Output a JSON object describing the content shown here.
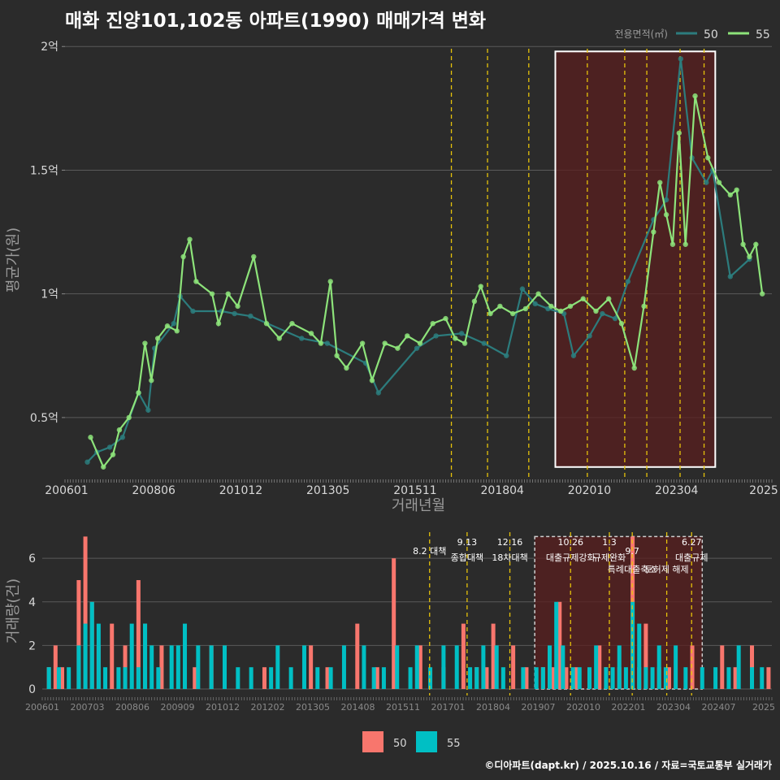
{
  "title": "매화 진양101,102동 아파트(1990) 매매가격 변화",
  "footer": "©디아파트(dapt.kr) / 2025.10.16 / 자료=국토교통부 실거래가",
  "colors": {
    "background": "#2b2b2b",
    "series50": "#2c7c7d",
    "series55": "#8de37a",
    "bar50": "#f8766d",
    "bar55": "#00bfc4",
    "highlight": "#5a1f1f",
    "policy": "#e6c20a",
    "grid": "#5a5a5a",
    "text": "#d8d8d8"
  },
  "chart_data": [
    {
      "type": "line",
      "title": "매화 진양101,102동 아파트(1990) 매매가격 변화",
      "xlabel": "거래년월",
      "ylabel": "평균가(원)",
      "ylim": [
        0.25,
        2.05
      ],
      "y_ticks": [
        {
          "v": 0.5,
          "label": "0.5억"
        },
        {
          "v": 1.0,
          "label": "1억"
        },
        {
          "v": 1.5,
          "label": "1.5억"
        },
        {
          "v": 2.0,
          "label": "2억"
        }
      ],
      "x_ticks": [
        "200601",
        "200806",
        "201012",
        "201305",
        "201511",
        "201804",
        "202010",
        "202304",
        "2025"
      ],
      "legend": {
        "title": "전용면적(㎡)",
        "items": [
          "50",
          "55"
        ],
        "position": "top-right"
      },
      "policy_lines": [
        2017.58,
        2018.71,
        2020.0,
        2021.83,
        2023.0,
        2023.69,
        2024.73,
        2025.48
      ],
      "highlight_period": {
        "x_from": 2020.83,
        "x_to": 2025.83,
        "y_from": 0.3,
        "y_to": 1.98
      },
      "series": [
        {
          "name": "50",
          "points": [
            [
              2006.2,
              0.32
            ],
            [
              2006.5,
              0.36
            ],
            [
              2006.9,
              0.38
            ],
            [
              2007.3,
              0.42
            ],
            [
              2007.8,
              0.6
            ],
            [
              2008.1,
              0.53
            ],
            [
              2008.3,
              0.78
            ],
            [
              2008.9,
              0.88
            ],
            [
              2009.1,
              0.99
            ],
            [
              2009.5,
              0.93
            ],
            [
              2010.4,
              0.93
            ],
            [
              2010.8,
              0.92
            ],
            [
              2011.3,
              0.91
            ],
            [
              2012.9,
              0.82
            ],
            [
              2013.7,
              0.8
            ],
            [
              2014.9,
              0.72
            ],
            [
              2015.3,
              0.6
            ],
            [
              2016.5,
              0.78
            ],
            [
              2017.1,
              0.83
            ],
            [
              2017.9,
              0.84
            ],
            [
              2018.6,
              0.8
            ],
            [
              2019.3,
              0.75
            ],
            [
              2019.8,
              1.02
            ],
            [
              2020.2,
              0.96
            ],
            [
              2020.6,
              0.94
            ],
            [
              2021.1,
              0.92
            ],
            [
              2021.4,
              0.75
            ],
            [
              2021.9,
              0.83
            ],
            [
              2022.3,
              0.92
            ],
            [
              2022.7,
              0.9
            ],
            [
              2023.1,
              1.05
            ],
            [
              2023.9,
              1.3
            ],
            [
              2024.3,
              1.38
            ],
            [
              2024.75,
              1.95
            ],
            [
              2025.1,
              1.55
            ],
            [
              2025.55,
              1.45
            ],
            [
              2025.75,
              1.5
            ],
            [
              2026.3,
              1.07
            ],
            [
              2026.9,
              1.14
            ]
          ]
        },
        {
          "name": "55",
          "points": [
            [
              2006.3,
              0.42
            ],
            [
              2006.7,
              0.3
            ],
            [
              2007.0,
              0.35
            ],
            [
              2007.2,
              0.45
            ],
            [
              2007.5,
              0.5
            ],
            [
              2007.8,
              0.6
            ],
            [
              2008.0,
              0.8
            ],
            [
              2008.2,
              0.65
            ],
            [
              2008.4,
              0.82
            ],
            [
              2008.7,
              0.87
            ],
            [
              2009.0,
              0.85
            ],
            [
              2009.2,
              1.15
            ],
            [
              2009.4,
              1.22
            ],
            [
              2009.6,
              1.05
            ],
            [
              2010.1,
              1.0
            ],
            [
              2010.3,
              0.88
            ],
            [
              2010.6,
              1.0
            ],
            [
              2010.9,
              0.95
            ],
            [
              2011.4,
              1.15
            ],
            [
              2011.8,
              0.88
            ],
            [
              2012.2,
              0.82
            ],
            [
              2012.6,
              0.88
            ],
            [
              2013.2,
              0.84
            ],
            [
              2013.5,
              0.8
            ],
            [
              2013.8,
              1.05
            ],
            [
              2014.0,
              0.75
            ],
            [
              2014.3,
              0.7
            ],
            [
              2014.8,
              0.8
            ],
            [
              2015.1,
              0.65
            ],
            [
              2015.5,
              0.8
            ],
            [
              2015.9,
              0.78
            ],
            [
              2016.2,
              0.83
            ],
            [
              2016.6,
              0.8
            ],
            [
              2017.0,
              0.88
            ],
            [
              2017.4,
              0.9
            ],
            [
              2017.7,
              0.82
            ],
            [
              2018.0,
              0.8
            ],
            [
              2018.3,
              0.97
            ],
            [
              2018.5,
              1.03
            ],
            [
              2018.8,
              0.92
            ],
            [
              2019.1,
              0.95
            ],
            [
              2019.5,
              0.92
            ],
            [
              2019.9,
              0.94
            ],
            [
              2020.3,
              1.0
            ],
            [
              2020.7,
              0.95
            ],
            [
              2021.0,
              0.93
            ],
            [
              2021.3,
              0.95
            ],
            [
              2021.7,
              0.98
            ],
            [
              2022.1,
              0.93
            ],
            [
              2022.5,
              0.98
            ],
            [
              2022.9,
              0.88
            ],
            [
              2023.3,
              0.7
            ],
            [
              2023.6,
              0.95
            ],
            [
              2023.9,
              1.25
            ],
            [
              2024.1,
              1.45
            ],
            [
              2024.3,
              1.32
            ],
            [
              2024.5,
              1.2
            ],
            [
              2024.7,
              1.65
            ],
            [
              2024.9,
              1.2
            ],
            [
              2025.2,
              1.8
            ],
            [
              2025.6,
              1.55
            ],
            [
              2025.95,
              1.45
            ],
            [
              2026.3,
              1.4
            ],
            [
              2026.5,
              1.42
            ],
            [
              2026.7,
              1.2
            ],
            [
              2026.9,
              1.15
            ],
            [
              2027.1,
              1.2
            ],
            [
              2027.3,
              1.0
            ]
          ]
        }
      ]
    },
    {
      "type": "bar",
      "xlabel": "",
      "ylabel": "거래량(건)",
      "ylim": [
        0,
        7.2
      ],
      "y_ticks": [
        0,
        2,
        4,
        6
      ],
      "x_ticks": [
        "200601",
        "200703",
        "200806",
        "200909",
        "201012",
        "201202",
        "201305",
        "201408",
        "201511",
        "201701",
        "201804",
        "201907",
        "202010",
        "202201",
        "202304",
        "202407",
        "2025"
      ],
      "legend": {
        "items": [
          "50",
          "55"
        ],
        "position": "bottom"
      },
      "highlight_period": {
        "x_from": 2020.75,
        "x_to": 2025.8,
        "y_from": 0,
        "y_to": 7.0
      },
      "annotations": [
        {
          "x": 2017.58,
          "top": "",
          "bottom": "8.2 대책",
          "level": 6.2
        },
        {
          "x": 2018.71,
          "top": "9.13",
          "bottom": "종합대책",
          "level": 6.5
        },
        {
          "x": 2020.0,
          "top": "12.16",
          "bottom": "18차대책",
          "level": 6.5
        },
        {
          "x": 2021.83,
          "top": "10.26",
          "bottom": "대출규제강화",
          "level": 6.5
        },
        {
          "x": 2023.0,
          "top": "1.3",
          "bottom": "규제완화",
          "level": 6.5
        },
        {
          "x": 2023.69,
          "top": "",
          "bottom": "9.7",
          "level": 6.2
        },
        {
          "x": 2023.69,
          "top": "",
          "bottom": "특례대출축소",
          "level": 5.8
        },
        {
          "x": 2024.73,
          "top": "",
          "bottom": "토허제 해제",
          "level": 5.8
        },
        {
          "x": 2025.48,
          "top": "6.27",
          "bottom": "대출규제",
          "level": 6.5
        }
      ],
      "series": [
        {
          "name": "50",
          "values": [
            [
              2006.1,
              1
            ],
            [
              2006.3,
              2
            ],
            [
              2006.5,
              1
            ],
            [
              2007.0,
              5
            ],
            [
              2007.2,
              7
            ],
            [
              2007.4,
              4
            ],
            [
              2007.6,
              2
            ],
            [
              2008.0,
              3
            ],
            [
              2008.4,
              2
            ],
            [
              2008.8,
              5
            ],
            [
              2009.0,
              3
            ],
            [
              2009.5,
              2
            ],
            [
              2010.2,
              1
            ],
            [
              2010.5,
              1
            ],
            [
              2011.0,
              2
            ],
            [
              2012.6,
              1
            ],
            [
              2014.0,
              2
            ],
            [
              2014.5,
              1
            ],
            [
              2015.4,
              3
            ],
            [
              2016.0,
              1
            ],
            [
              2016.5,
              6
            ],
            [
              2017.3,
              2
            ],
            [
              2018.0,
              1
            ],
            [
              2018.6,
              3
            ],
            [
              2019.0,
              1
            ],
            [
              2019.3,
              1
            ],
            [
              2019.5,
              3
            ],
            [
              2020.1,
              2
            ],
            [
              2020.5,
              1
            ],
            [
              2021.0,
              1
            ],
            [
              2021.3,
              1
            ],
            [
              2021.5,
              4
            ],
            [
              2021.7,
              1
            ],
            [
              2022.0,
              1
            ],
            [
              2022.7,
              2
            ],
            [
              2022.9,
              1
            ],
            [
              2023.3,
              1
            ],
            [
              2023.7,
              7
            ],
            [
              2023.9,
              1
            ],
            [
              2024.1,
              3
            ],
            [
              2024.5,
              1
            ],
            [
              2024.8,
              1
            ],
            [
              2025.5,
              2
            ],
            [
              2026.4,
              2
            ],
            [
              2026.8,
              1
            ],
            [
              2027.3,
              2
            ],
            [
              2027.8,
              1
            ]
          ]
        },
        {
          "name": "55",
          "values": [
            [
              2006.1,
              1
            ],
            [
              2006.4,
              1
            ],
            [
              2006.7,
              1
            ],
            [
              2007.0,
              2
            ],
            [
              2007.2,
              3
            ],
            [
              2007.4,
              4
            ],
            [
              2007.6,
              3
            ],
            [
              2007.8,
              1
            ],
            [
              2008.2,
              1
            ],
            [
              2008.4,
              1
            ],
            [
              2008.6,
              3
            ],
            [
              2008.8,
              1
            ],
            [
              2009.0,
              3
            ],
            [
              2009.2,
              2
            ],
            [
              2009.4,
              1
            ],
            [
              2009.8,
              2
            ],
            [
              2010.0,
              2
            ],
            [
              2010.2,
              3
            ],
            [
              2010.6,
              2
            ],
            [
              2011.0,
              2
            ],
            [
              2011.4,
              2
            ],
            [
              2011.8,
              1
            ],
            [
              2012.2,
              1
            ],
            [
              2012.8,
              1
            ],
            [
              2013.0,
              2
            ],
            [
              2013.4,
              1
            ],
            [
              2013.8,
              2
            ],
            [
              2014.2,
              1
            ],
            [
              2014.6,
              1
            ],
            [
              2015.0,
              2
            ],
            [
              2015.6,
              2
            ],
            [
              2015.9,
              1
            ],
            [
              2016.2,
              1
            ],
            [
              2016.6,
              2
            ],
            [
              2017.0,
              1
            ],
            [
              2017.2,
              2
            ],
            [
              2017.6,
              1
            ],
            [
              2018.0,
              2
            ],
            [
              2018.4,
              2
            ],
            [
              2018.8,
              1
            ],
            [
              2019.0,
              1
            ],
            [
              2019.2,
              2
            ],
            [
              2019.6,
              2
            ],
            [
              2019.8,
              1
            ],
            [
              2020.4,
              1
            ],
            [
              2020.8,
              1
            ],
            [
              2021.0,
              1
            ],
            [
              2021.2,
              2
            ],
            [
              2021.4,
              4
            ],
            [
              2021.6,
              2
            ],
            [
              2021.9,
              1
            ],
            [
              2022.1,
              1
            ],
            [
              2022.4,
              1
            ],
            [
              2022.6,
              2
            ],
            [
              2022.9,
              1
            ],
            [
              2023.1,
              1
            ],
            [
              2023.3,
              2
            ],
            [
              2023.5,
              1
            ],
            [
              2023.7,
              4
            ],
            [
              2023.9,
              3
            ],
            [
              2024.1,
              1
            ],
            [
              2024.3,
              1
            ],
            [
              2024.5,
              2
            ],
            [
              2024.7,
              1
            ],
            [
              2025.0,
              2
            ],
            [
              2025.3,
              1
            ],
            [
              2025.8,
              1
            ],
            [
              2026.2,
              1
            ],
            [
              2026.6,
              1
            ],
            [
              2026.9,
              2
            ],
            [
              2027.3,
              1
            ],
            [
              2027.6,
              1
            ]
          ]
        }
      ]
    }
  ]
}
